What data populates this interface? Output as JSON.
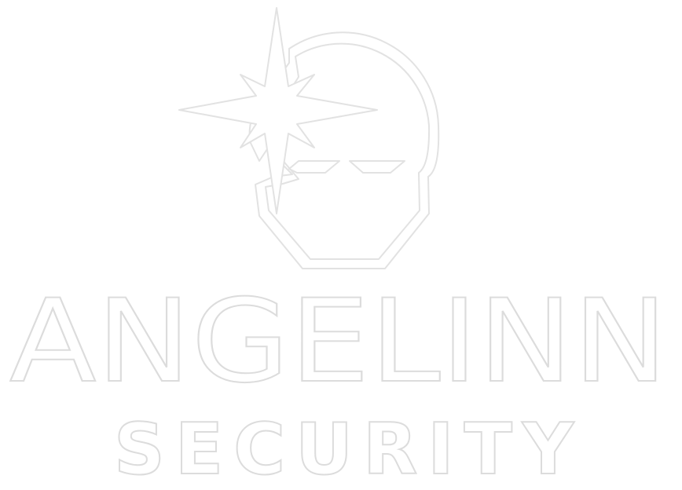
{
  "logo": {
    "name": "ANGELINN",
    "tagline": "SECURITY"
  }
}
